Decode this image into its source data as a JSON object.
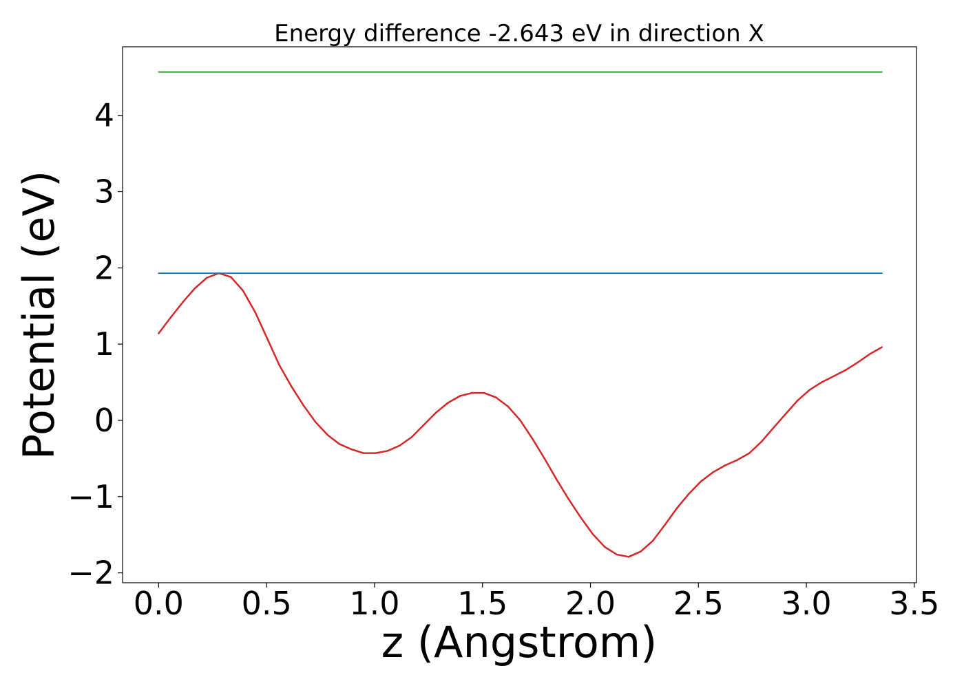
{
  "chart_data": {
    "type": "line",
    "title": "Energy difference -2.643 eV in direction X",
    "xlabel": "z (Angstrom)",
    "ylabel": "Potential (eV)",
    "xlim": [
      -0.167,
      3.51
    ],
    "ylim": [
      -2.13,
      4.9
    ],
    "xticks": [
      0.0,
      0.5,
      1.0,
      1.5,
      2.0,
      2.5,
      3.0,
      3.5
    ],
    "xtick_labels": [
      "0.0",
      "0.5",
      "1.0",
      "1.5",
      "2.0",
      "2.5",
      "3.0",
      "3.5"
    ],
    "yticks": [
      -2,
      -1,
      0,
      1,
      2,
      3,
      4
    ],
    "ytick_labels": [
      "−2",
      "−1",
      "0",
      "1",
      "2",
      "3",
      "4"
    ],
    "grid": false,
    "series": [
      {
        "color": "#d62728",
        "x": [
          0.0,
          0.056,
          0.112,
          0.167,
          0.223,
          0.279,
          0.335,
          0.391,
          0.447,
          0.502,
          0.558,
          0.614,
          0.67,
          0.726,
          0.782,
          0.837,
          0.893,
          0.949,
          1.005,
          1.061,
          1.117,
          1.172,
          1.228,
          1.284,
          1.34,
          1.396,
          1.452,
          1.507,
          1.563,
          1.619,
          1.675,
          1.731,
          1.787,
          1.842,
          1.898,
          1.954,
          2.01,
          2.066,
          2.122,
          2.177,
          2.233,
          2.289,
          2.345,
          2.401,
          2.457,
          2.512,
          2.568,
          2.624,
          2.68,
          2.736,
          2.792,
          2.847,
          2.903,
          2.959,
          3.015,
          3.071,
          3.127,
          3.182,
          3.238,
          3.294,
          3.35
        ],
        "y": [
          1.14,
          1.35,
          1.55,
          1.73,
          1.87,
          1.93,
          1.88,
          1.7,
          1.42,
          1.08,
          0.73,
          0.45,
          0.2,
          -0.02,
          -0.19,
          -0.31,
          -0.38,
          -0.43,
          -0.43,
          -0.4,
          -0.33,
          -0.22,
          -0.06,
          0.1,
          0.23,
          0.32,
          0.36,
          0.36,
          0.3,
          0.18,
          0.0,
          -0.24,
          -0.5,
          -0.77,
          -1.03,
          -1.27,
          -1.49,
          -1.66,
          -1.76,
          -1.79,
          -1.72,
          -1.58,
          -1.37,
          -1.15,
          -0.96,
          -0.8,
          -0.68,
          -0.59,
          -0.52,
          -0.43,
          -0.28,
          -0.1,
          0.08,
          0.26,
          0.4,
          0.5,
          0.58,
          0.66,
          0.76,
          0.87,
          0.96
        ]
      },
      {
        "color": "#1f77b4",
        "x": [
          0.0,
          3.35
        ],
        "y": [
          1.93,
          1.93
        ]
      },
      {
        "color": "#2ca02c",
        "x": [
          0.0,
          3.35
        ],
        "y": [
          4.57,
          4.57
        ]
      }
    ]
  }
}
